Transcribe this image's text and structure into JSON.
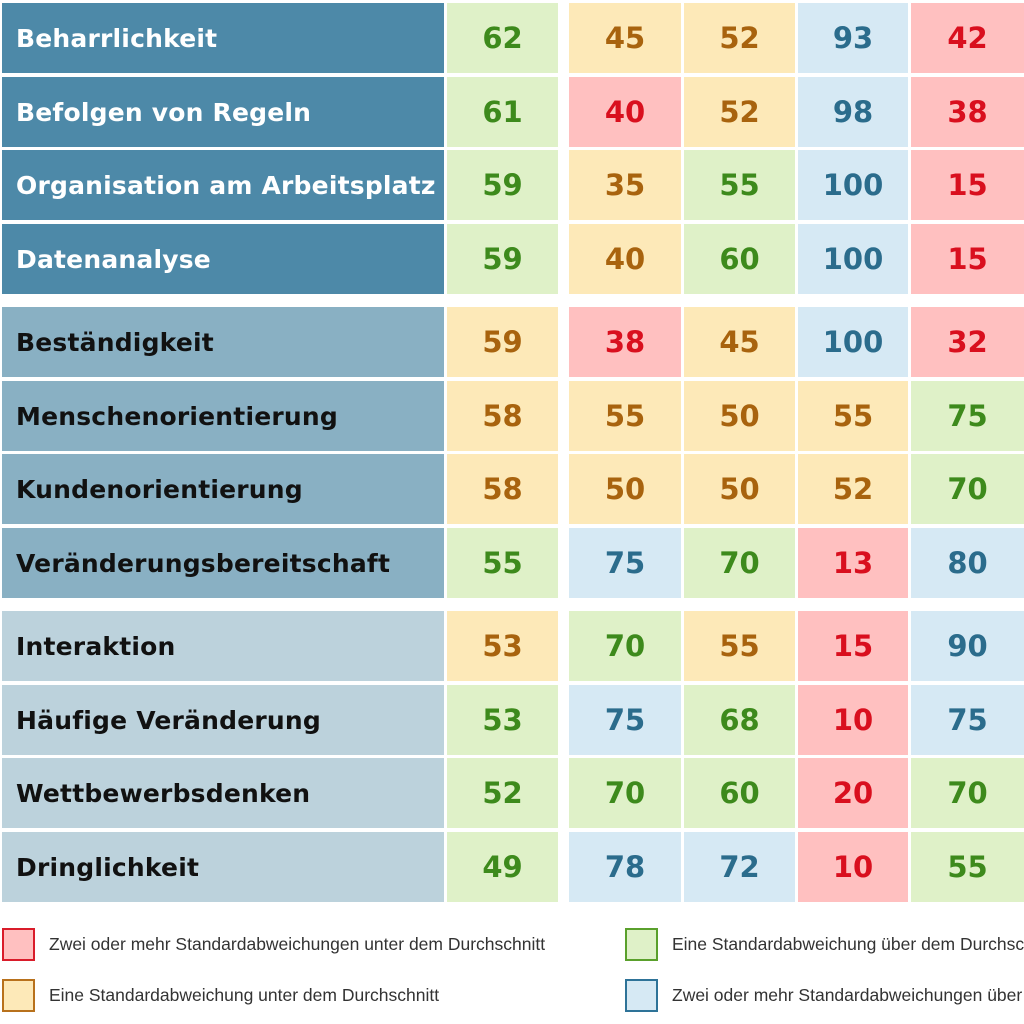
{
  "chart_data": {
    "type": "table",
    "groups": [
      {
        "rows": [
          {
            "label": "Beharrlichkeit",
            "values": [
              62,
              45,
              52,
              93,
              42
            ],
            "levels": [
              "plus1",
              "minus1",
              "minus1",
              "plus2",
              "minus2"
            ]
          },
          {
            "label": "Befolgen von Regeln",
            "values": [
              61,
              40,
              52,
              98,
              38
            ],
            "levels": [
              "plus1",
              "minus2",
              "minus1",
              "plus2",
              "minus2"
            ]
          },
          {
            "label": "Organisation am Arbeitsplatz",
            "values": [
              59,
              35,
              55,
              100,
              15
            ],
            "levels": [
              "plus1",
              "minus1",
              "plus1",
              "plus2",
              "minus2"
            ]
          },
          {
            "label": "Datenanalyse",
            "values": [
              59,
              40,
              60,
              100,
              15
            ],
            "levels": [
              "plus1",
              "minus1",
              "plus1",
              "plus2",
              "minus2"
            ]
          }
        ]
      },
      {
        "rows": [
          {
            "label": "Beständigkeit",
            "values": [
              59,
              38,
              45,
              100,
              32
            ],
            "levels": [
              "minus1",
              "minus2",
              "minus1",
              "plus2",
              "minus2"
            ]
          },
          {
            "label": "Menschenorientierung",
            "values": [
              58,
              55,
              50,
              55,
              75
            ],
            "levels": [
              "minus1",
              "minus1",
              "minus1",
              "minus1",
              "plus1"
            ]
          },
          {
            "label": "Kundenorientierung",
            "values": [
              58,
              50,
              50,
              52,
              70
            ],
            "levels": [
              "minus1",
              "minus1",
              "minus1",
              "minus1",
              "plus1"
            ]
          },
          {
            "label": "Veränderungsbereitschaft",
            "values": [
              55,
              75,
              70,
              13,
              80
            ],
            "levels": [
              "plus1",
              "plus2",
              "plus1",
              "minus2",
              "plus2"
            ]
          }
        ]
      },
      {
        "rows": [
          {
            "label": "Interaktion",
            "values": [
              53,
              70,
              55,
              15,
              90
            ],
            "levels": [
              "minus1",
              "plus1",
              "minus1",
              "minus2",
              "plus2"
            ]
          },
          {
            "label": "Häufige Veränderung",
            "values": [
              53,
              75,
              68,
              10,
              75
            ],
            "levels": [
              "plus1",
              "plus2",
              "plus1",
              "minus2",
              "plus2"
            ]
          },
          {
            "label": "Wettbewerbsdenken",
            "values": [
              52,
              70,
              60,
              20,
              70
            ],
            "levels": [
              "plus1",
              "plus1",
              "plus1",
              "minus2",
              "plus1"
            ]
          },
          {
            "label": "Dringlichkeit",
            "values": [
              49,
              78,
              72,
              10,
              55
            ],
            "levels": [
              "plus1",
              "plus2",
              "plus2",
              "minus2",
              "plus1"
            ]
          }
        ]
      }
    ],
    "group_colors": [
      {
        "bg": "#4d89a8",
        "text": "#ffffff"
      },
      {
        "bg": "#89b0c3",
        "text": "#111111"
      },
      {
        "bg": "#bcd2dc",
        "text": "#111111"
      }
    ],
    "level_colors": {
      "minus2": {
        "bg": "#ffc0c0",
        "text": "#d90f1e",
        "border": "#d91c2a"
      },
      "minus1": {
        "bg": "#fde9b8",
        "text": "#a8630e",
        "border": "#b8711c"
      },
      "plus1": {
        "bg": "#dff1c8",
        "text": "#3d8a1c",
        "border": "#5aa02c"
      },
      "plus2": {
        "bg": "#d6e9f4",
        "text": "#2b6c8c",
        "border": "#2e7398"
      }
    }
  },
  "legend": [
    {
      "level": "minus2",
      "text": "Zwei oder mehr Standardabweichungen unter dem Durchschnitt"
    },
    {
      "level": "plus1",
      "text": "Eine Standardabweichung über dem Durchschnitt"
    },
    {
      "level": "minus1",
      "text": "Eine Standardabweichung unter dem Durchschnitt"
    },
    {
      "level": "plus2",
      "text": "Zwei oder mehr Standardabweichungen über dem Durchschnitt"
    }
  ]
}
